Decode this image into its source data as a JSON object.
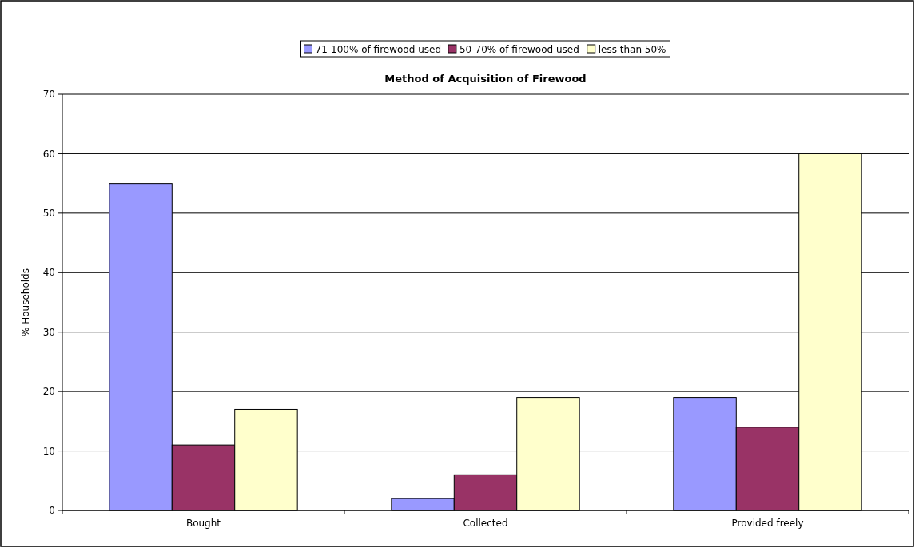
{
  "chart_data": {
    "type": "bar",
    "title": "Method of Acquisition of Firewood",
    "ylabel": "% Households",
    "categories": [
      "Bought",
      "Collected",
      "Provided freely"
    ],
    "series": [
      {
        "name": "71-100% of firewood used",
        "color": "#9999ff",
        "values": [
          55,
          2,
          19
        ]
      },
      {
        "name": "50-70% of firewood used",
        "color": "#993366",
        "values": [
          11,
          6,
          14
        ]
      },
      {
        "name": "less than 50%",
        "color": "#ffffcc",
        "values": [
          17,
          19,
          60
        ]
      }
    ],
    "ylim": [
      0,
      70
    ],
    "yticks": [
      0,
      10,
      20,
      30,
      40,
      50,
      60,
      70
    ],
    "grid": "y",
    "legend": "top"
  }
}
